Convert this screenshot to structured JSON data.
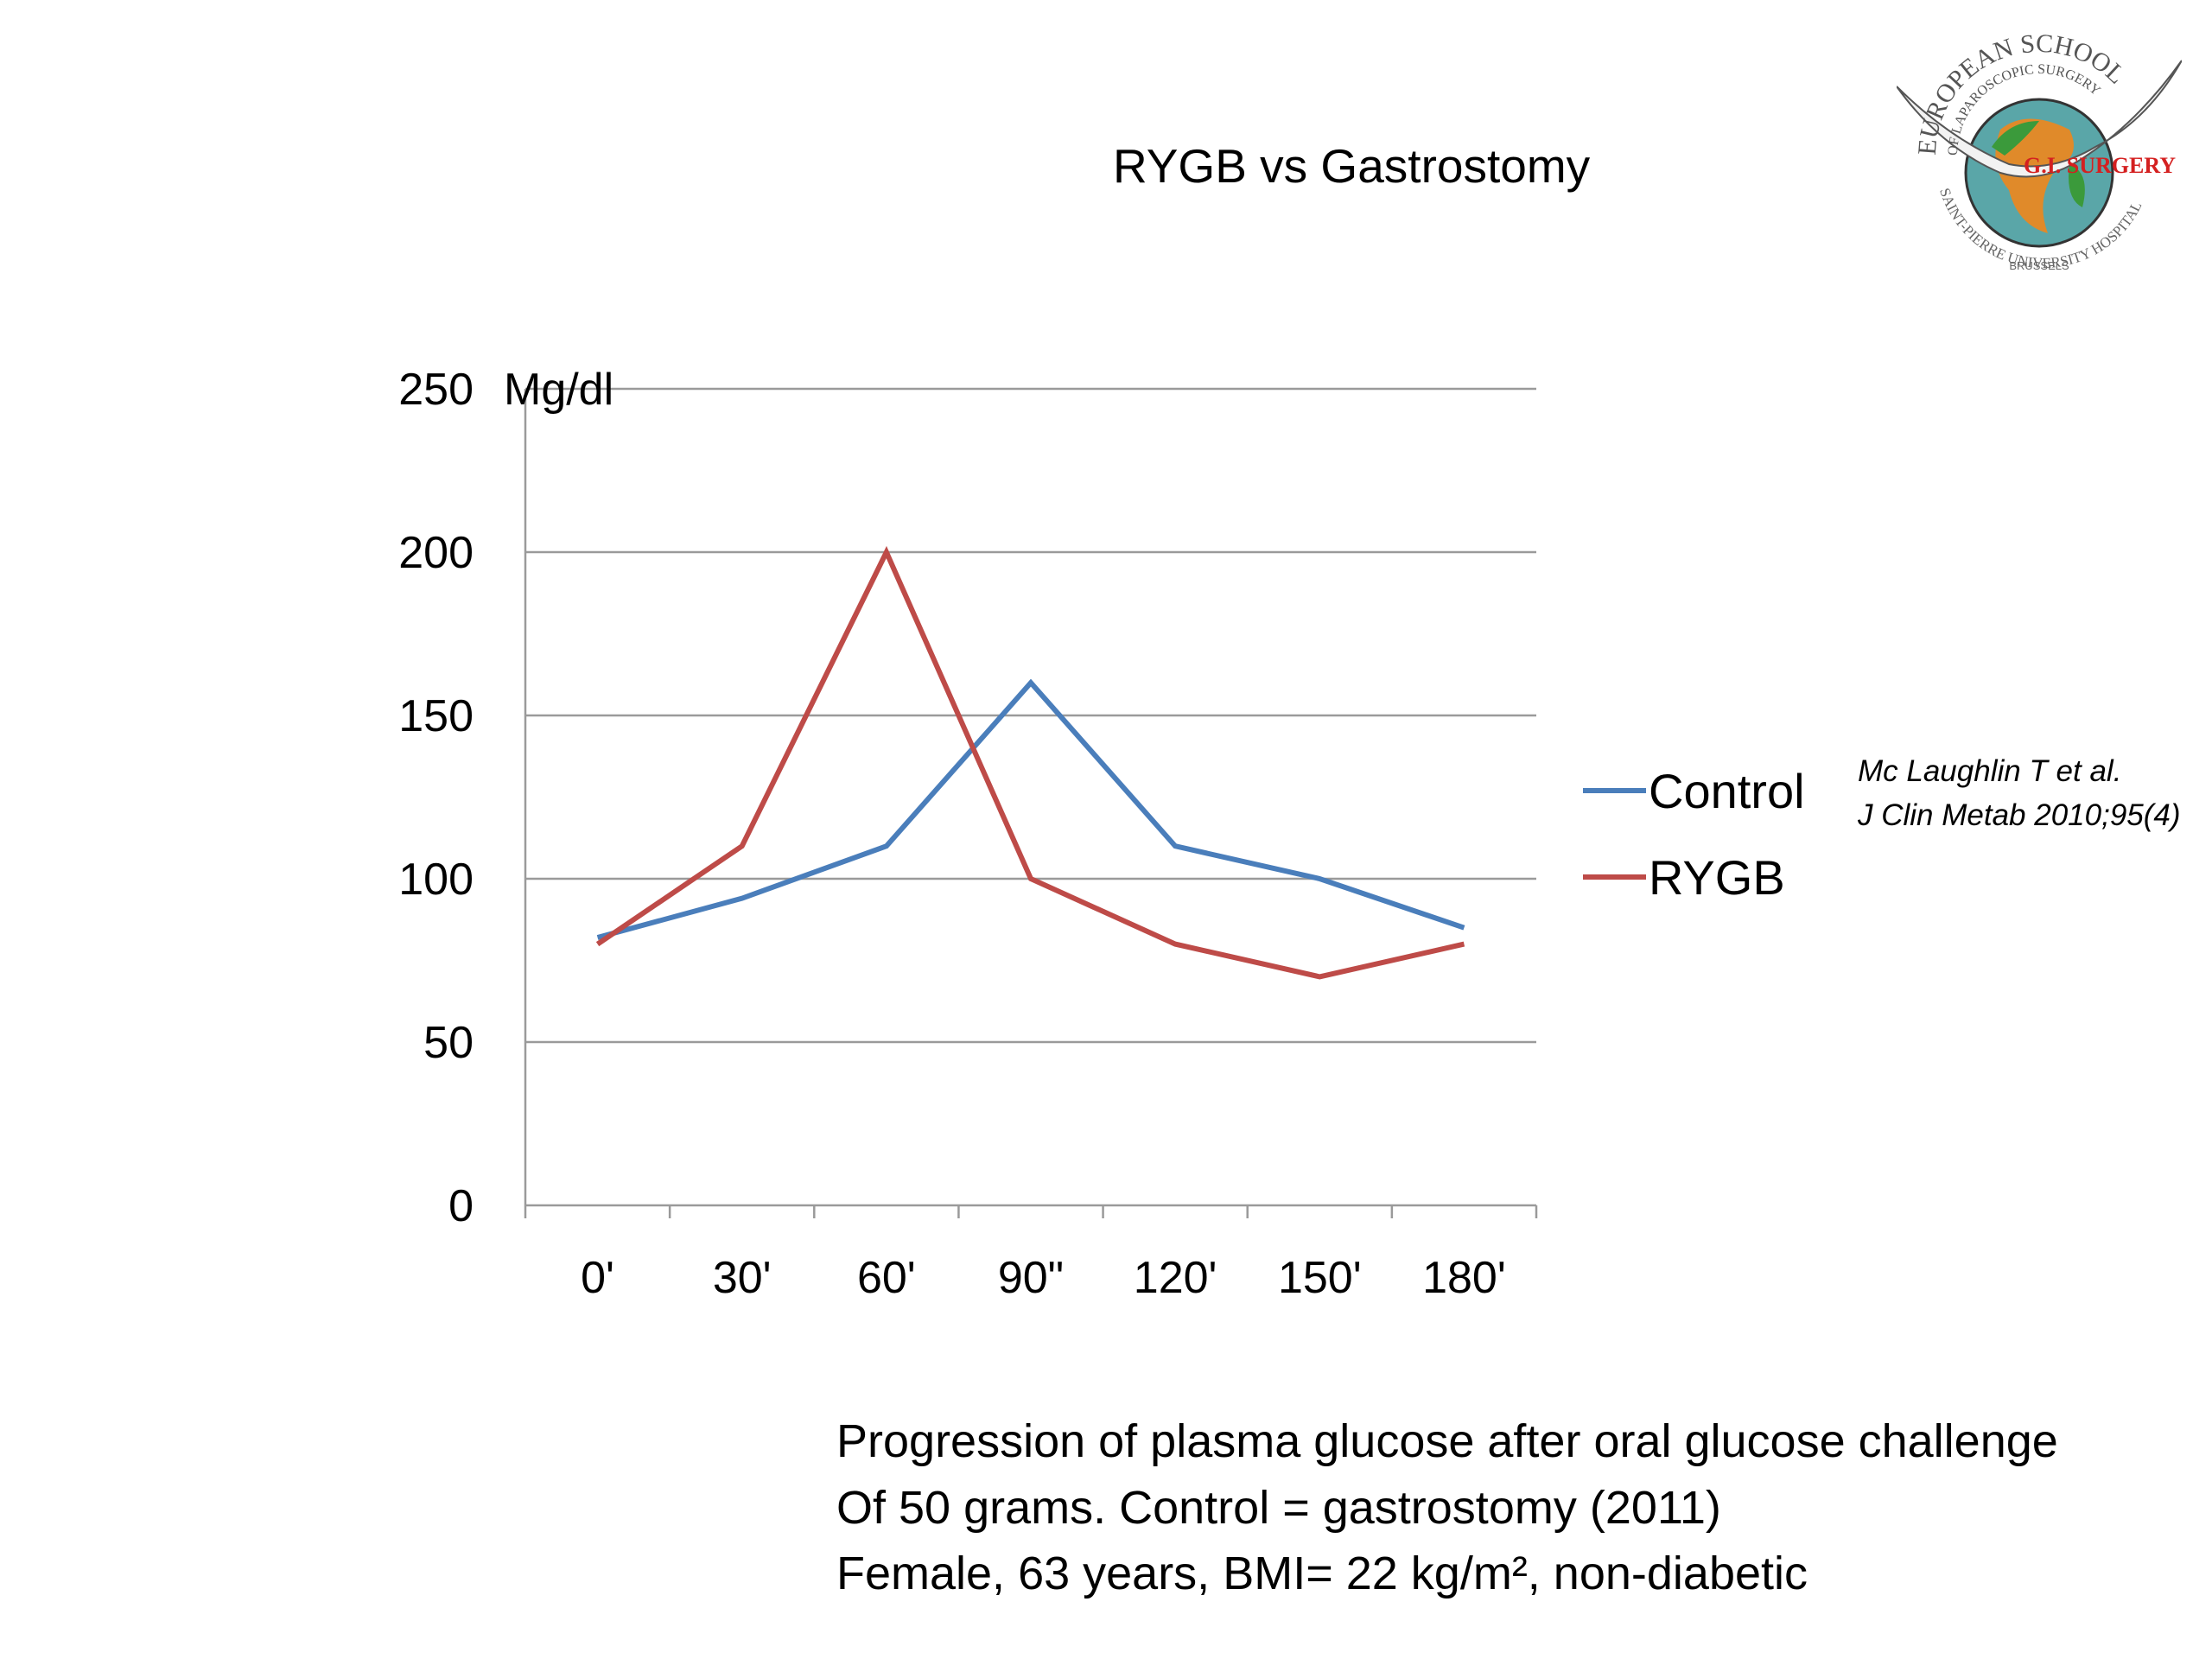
{
  "slide": {
    "title": "RYGB vs Gastrostomy",
    "citation": [
      "Mc Laughlin T et al.",
      "J Clin Metab 2010;95(4)"
    ],
    "caption": [
      "Progression of plasma glucose after oral glucose challenge",
      "Of 50 grams. Control = gastrostomy (2011)",
      "Female, 63 years, BMI= 22 kg/m², non-diabetic"
    ],
    "logo": {
      "top_text": "EUROPEAN SCHOOL",
      "sub_text": "OF LAPAROSCOPIC SURGERY",
      "badge": "G.I. SURGERY",
      "bottom_text": "SAINT-PIERRE UNIVERSITY HOSPITAL",
      "city": "BRUSSELS"
    }
  },
  "chart_data": {
    "type": "line",
    "title": "",
    "xlabel": "",
    "ylabel": "Mg/dl",
    "categories": [
      "0'",
      "30'",
      "60'",
      "90\"",
      "120'",
      "150'",
      "180'"
    ],
    "yticks": [
      0,
      50,
      100,
      150,
      200,
      250
    ],
    "ylim": [
      0,
      250
    ],
    "grid": true,
    "legend": "right",
    "series": [
      {
        "name": "Control",
        "color": "#4a7ebb",
        "values": [
          82,
          94,
          110,
          160,
          110,
          100,
          85
        ]
      },
      {
        "name": "RYGB",
        "color": "#be4b48",
        "values": [
          80,
          110,
          200,
          100,
          80,
          70,
          80
        ]
      }
    ]
  }
}
